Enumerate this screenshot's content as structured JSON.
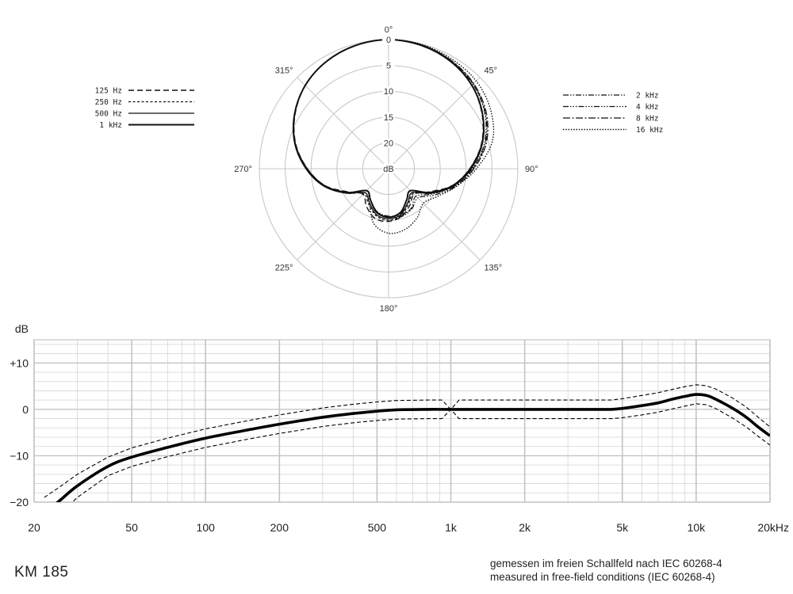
{
  "chart_data": [
    {
      "type": "polar",
      "angle_labels": [
        {
          "angle": 0,
          "label": "0°"
        },
        {
          "angle": 45,
          "label": "45°"
        },
        {
          "angle": 90,
          "label": "90°"
        },
        {
          "angle": 135,
          "label": "135°"
        },
        {
          "angle": 180,
          "label": "180°"
        },
        {
          "angle": 225,
          "label": "225°"
        },
        {
          "angle": 270,
          "label": "270°"
        },
        {
          "angle": 315,
          "label": "315°"
        }
      ],
      "radial_labels": [
        "0",
        "5",
        "10",
        "15",
        "20",
        "dB"
      ],
      "radial_values": [
        0,
        5,
        10,
        15,
        20
      ],
      "radial_max": 25,
      "legend_left": [
        {
          "name": "125 Hz",
          "dash": "dash"
        },
        {
          "name": "250 Hz",
          "dash": "shortdash"
        },
        {
          "name": "500 Hz",
          "dash": "solid"
        },
        {
          "name": "1 kHz",
          "dash": "solid-bold"
        }
      ],
      "legend_right": [
        {
          "name": "2 kHz",
          "dash": "dashdotdot"
        },
        {
          "name": "4 kHz",
          "dash": "dashdotdotdot"
        },
        {
          "name": "8 kHz",
          "dash": "longdashdot"
        },
        {
          "name": "16 kHz",
          "dash": "dot"
        }
      ],
      "series": [
        {
          "name": "500 Hz",
          "angles": [
            0,
            15,
            30,
            45,
            60,
            75,
            90,
            105,
            120,
            135,
            150,
            165,
            180,
            195,
            210,
            225,
            240,
            255,
            270,
            285,
            300,
            315,
            330,
            345
          ],
          "attenuation_db": [
            0,
            0.3,
            1.0,
            2.2,
            4.0,
            6.2,
            9.0,
            12.0,
            15.5,
            18.5,
            17.5,
            15.8,
            15.3,
            15.8,
            17.5,
            18.5,
            15.5,
            12.0,
            9.0,
            6.2,
            4.0,
            2.2,
            1.0,
            0.3
          ]
        },
        {
          "name": "1 kHz",
          "angles": [
            0,
            15,
            30,
            45,
            60,
            75,
            90,
            105,
            120,
            135,
            150,
            165,
            180,
            195,
            210,
            225,
            240,
            255,
            270,
            285,
            300,
            315,
            330,
            345
          ],
          "attenuation_db": [
            0,
            0.3,
            1.0,
            2.2,
            4.0,
            6.3,
            9.2,
            12.2,
            15.8,
            19.0,
            18.0,
            16.2,
            15.6,
            16.2,
            18.0,
            19.0,
            15.8,
            12.2,
            9.2,
            6.3,
            4.0,
            2.2,
            1.0,
            0.3
          ]
        },
        {
          "name": "125 Hz",
          "angles": [
            0,
            15,
            30,
            45,
            60,
            75,
            90,
            105,
            120,
            135,
            150,
            165,
            180,
            195,
            210,
            225,
            240,
            255,
            270,
            285,
            300,
            315,
            330,
            345
          ],
          "attenuation_db": [
            0,
            0.3,
            1.0,
            2.2,
            4.1,
            6.4,
            9.3,
            12.3,
            16.0,
            18.0,
            16.8,
            15.4,
            14.8,
            15.0,
            16.5,
            18.0,
            16.0,
            12.3,
            9.3,
            6.4,
            4.1,
            2.2,
            1.0,
            0.3
          ]
        },
        {
          "name": "250 Hz",
          "angles": [
            0,
            15,
            30,
            45,
            60,
            75,
            90,
            105,
            120,
            135,
            150,
            165,
            180,
            195,
            210,
            225,
            240,
            255,
            270,
            285,
            300,
            315,
            330,
            345
          ],
          "attenuation_db": [
            0,
            0.3,
            1.0,
            2.2,
            4.0,
            6.3,
            9.1,
            12.1,
            15.6,
            18.2,
            17.2,
            15.6,
            15.0,
            15.6,
            17.2,
            18.2,
            15.6,
            12.1,
            9.1,
            6.3,
            4.0,
            2.2,
            1.0,
            0.3
          ]
        },
        {
          "name": "2 kHz",
          "angles": [
            0,
            15,
            30,
            45,
            60,
            75,
            90,
            105,
            120,
            135,
            150,
            165,
            180,
            195,
            210,
            225,
            240,
            255,
            270,
            285,
            300,
            315,
            330,
            345
          ],
          "attenuation_db": [
            0,
            0.2,
            0.9,
            1.9,
            3.5,
            5.8,
            8.8,
            12.0,
            15.2,
            17.5,
            16.2,
            15.6,
            15.8,
            16.4,
            18.0,
            19.0,
            15.8,
            12.2,
            9.2,
            6.3,
            4.0,
            2.2,
            1.0,
            0.3
          ]
        },
        {
          "name": "4 kHz",
          "angles": [
            0,
            15,
            30,
            45,
            60,
            75,
            90,
            105,
            120,
            135,
            150,
            165,
            180,
            195,
            210,
            225,
            240,
            255,
            270,
            285,
            300,
            315,
            330,
            345
          ],
          "attenuation_db": [
            0,
            0.2,
            0.8,
            1.8,
            3.4,
            5.6,
            8.6,
            11.6,
            14.8,
            17.0,
            16.0,
            15.4,
            15.6,
            16.4,
            18.0,
            19.0,
            15.8,
            12.2,
            9.2,
            6.3,
            4.0,
            2.2,
            1.0,
            0.3
          ]
        },
        {
          "name": "8 kHz",
          "angles": [
            0,
            15,
            30,
            45,
            60,
            75,
            90,
            105,
            120,
            135,
            150,
            165,
            180,
            195,
            210,
            225,
            240,
            255,
            270,
            285,
            300,
            315,
            330,
            345
          ],
          "attenuation_db": [
            0,
            0.2,
            0.8,
            1.7,
            3.2,
            5.4,
            8.5,
            11.8,
            15.5,
            18.5,
            17.5,
            16.0,
            15.6,
            16.2,
            18.0,
            19.0,
            15.8,
            12.2,
            9.2,
            6.3,
            4.0,
            2.2,
            1.0,
            0.3
          ]
        },
        {
          "name": "16 kHz",
          "angles": [
            0,
            15,
            30,
            45,
            60,
            75,
            90,
            105,
            120,
            135,
            150,
            165,
            180,
            195,
            210,
            225,
            240,
            255,
            270,
            285,
            300,
            315,
            330,
            345
          ],
          "attenuation_db": [
            0,
            0.1,
            0.5,
            1.0,
            2.2,
            4.2,
            8.0,
            11.5,
            14.2,
            15.5,
            14.0,
            12.8,
            12.5,
            14.0,
            17.5,
            19.0,
            15.8,
            12.2,
            9.2,
            6.3,
            4.0,
            2.2,
            1.0,
            0.3
          ]
        }
      ]
    },
    {
      "type": "line",
      "ylabel": "dB",
      "xscale": "log",
      "xlim": [
        20,
        20000
      ],
      "ylim": [
        -20,
        15
      ],
      "x_ticks": [
        20,
        50,
        100,
        200,
        500,
        1000,
        2000,
        5000,
        10000,
        20000
      ],
      "x_tick_labels": [
        "20",
        "50",
        "100",
        "200",
        "500",
        "1k",
        "2k",
        "5k",
        "10k",
        "20kHz"
      ],
      "y_ticks": [
        10,
        0,
        -10,
        -20
      ],
      "y_tick_labels": [
        "+10",
        "0",
        "−10",
        "−20"
      ],
      "grid": true,
      "series": [
        {
          "style": "solid",
          "x": [
            22,
            25,
            30,
            40,
            50,
            70,
            100,
            150,
            200,
            300,
            400,
            500,
            600,
            800,
            1000,
            2000,
            3000,
            4000,
            4500,
            5000,
            6000,
            7000,
            8000,
            9000,
            10000,
            11000,
            12000,
            14000,
            16000,
            18000,
            20000
          ],
          "y": [
            -22,
            -20.0,
            -16.5,
            -12.3,
            -10.3,
            -8.2,
            -6.2,
            -4.4,
            -3.2,
            -1.7,
            -0.9,
            -0.4,
            -0.1,
            0,
            0,
            0,
            0,
            0,
            0,
            0.2,
            0.8,
            1.4,
            2.2,
            2.8,
            3.2,
            3.0,
            2.2,
            0.3,
            -1.7,
            -3.9,
            -5.7
          ]
        },
        {
          "style": "dashed",
          "name": "upper tolerance",
          "x": [
            22,
            25,
            30,
            40,
            50,
            70,
            100,
            150,
            200,
            300,
            400,
            500,
            600,
            800,
            920,
            1000,
            1080,
            2000,
            3000,
            4000,
            4500,
            5000,
            6000,
            7000,
            8000,
            9000,
            10000,
            11000,
            12000,
            14000,
            16000,
            18000,
            20000
          ],
          "y": [
            -19,
            -17.0,
            -14.0,
            -10.3,
            -8.3,
            -6.2,
            -4.2,
            -2.4,
            -1.2,
            0.3,
            1.1,
            1.6,
            1.9,
            2.0,
            2.0,
            0,
            2.0,
            2.0,
            2.0,
            2.0,
            2.0,
            2.3,
            3.0,
            3.6,
            4.3,
            4.9,
            5.3,
            5.1,
            4.4,
            2.5,
            0.5,
            -1.8,
            -3.8
          ]
        },
        {
          "style": "dashed",
          "name": "lower tolerance",
          "x": [
            22,
            25,
            30,
            40,
            50,
            70,
            100,
            150,
            200,
            300,
            400,
            500,
            600,
            800,
            920,
            1000,
            1080,
            2000,
            3000,
            4000,
            4500,
            5000,
            6000,
            7000,
            8000,
            9000,
            10000,
            11000,
            12000,
            14000,
            16000,
            18000,
            20000
          ],
          "y": [
            -25,
            -23.0,
            -19.0,
            -14.3,
            -12.3,
            -10.2,
            -8.2,
            -6.4,
            -5.2,
            -3.7,
            -2.9,
            -2.4,
            -2.1,
            -2.0,
            -2.0,
            0,
            -2.0,
            -2.0,
            -2.0,
            -2.0,
            -2.0,
            -1.8,
            -1.2,
            -0.6,
            0.1,
            0.7,
            1.2,
            1.0,
            0.2,
            -1.8,
            -3.8,
            -5.9,
            -7.7
          ]
        }
      ]
    }
  ],
  "footer": {
    "model": "KM 185",
    "note_de": "gemessen im freien Schallfeld nach IEC 60268-4",
    "note_en": "measured in free-field conditions (IEC 60268-4)"
  }
}
